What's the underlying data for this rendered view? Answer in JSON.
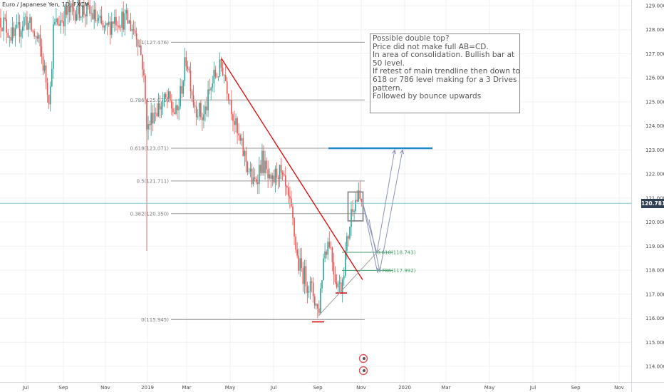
{
  "legend": {
    "symbol": "Euro / Japanese Yen, 1D, FXCM"
  },
  "current_price": "120.781",
  "annotation": {
    "lines": [
      "Possible double top?",
      "Price did not make full AB=CD.",
      "In area of consolidation. Bullish bar at",
      "50 level.",
      "If retest of main trendline then down to",
      "618 or 786 level making for a 3 Drives",
      "pattern.",
      "Followed by bounce upwards"
    ]
  },
  "chart_data": {
    "type": "candlestick",
    "title": "",
    "y_axis": {
      "side": "right",
      "range": [
        113.6,
        129.3
      ],
      "ticks": [
        "114.000",
        "115.000",
        "116.000",
        "117.000",
        "118.000",
        "119.000",
        "120.000",
        "121.000",
        "122.000",
        "123.000",
        "124.000",
        "125.000",
        "126.000",
        "127.000",
        "128.000",
        "129.000"
      ]
    },
    "x_axis": {
      "ticks": [
        "Jul",
        "Sep",
        "Nov",
        "2019",
        "Mar",
        "May",
        "Jul",
        "Sep",
        "Nov",
        "2020",
        "Mar",
        "May",
        "Jul",
        "Sep",
        "Nov"
      ]
    },
    "grid": true,
    "fib_levels": [
      {
        "label": "1(127.476)",
        "value": 127.476
      },
      {
        "label": "0.786(125.079)",
        "value": 125.079
      },
      {
        "label": "0.618(123.071)",
        "value": 123.071
      },
      {
        "label": "0.5(121.711)",
        "value": 121.711
      },
      {
        "label": "0.382(120.350)",
        "value": 120.35
      },
      {
        "label": "0(115.945)",
        "value": 115.945
      }
    ],
    "fib_extension": [
      {
        "label": "0.618(118.743)",
        "value": 118.743
      },
      {
        "label": "0.786(117.992)",
        "value": 117.992
      }
    ],
    "target_level": 123.071,
    "current_price": 120.781,
    "colors": {
      "up": "#26a69a",
      "down": "#ef5350",
      "trendline": "#e01010",
      "fib": "#999999",
      "fib_ext": "#3f9e66",
      "target": "#1e88c8",
      "price_line": "#7ec9d6",
      "projection": "#8a93b8"
    }
  }
}
